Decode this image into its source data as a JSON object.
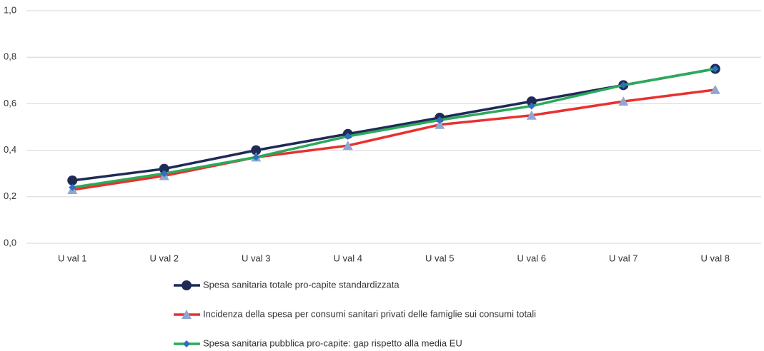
{
  "chart_data": {
    "type": "line",
    "categories": [
      "U val 1",
      "U val 2",
      "U val 3",
      "U val 4",
      "U val 5",
      "U val 6",
      "U val 7",
      "U val 8"
    ],
    "series": [
      {
        "name": "Spesa sanitaria totale pro-capite standardizzata",
        "color": "#1f2a56",
        "marker": "circle",
        "values": [
          0.27,
          0.32,
          0.4,
          0.47,
          0.54,
          0.61,
          0.68,
          0.75
        ]
      },
      {
        "name": "Incidenza della spesa per consumi sanitari privati delle famiglie sui consumi totali",
        "color": "#e8312f",
        "marker": "triangle",
        "values": [
          0.23,
          0.29,
          0.37,
          0.42,
          0.51,
          0.55,
          0.61,
          0.66
        ]
      },
      {
        "name": "Spesa sanitaria pubblica pro-capite: gap rispetto alla media EU",
        "color": "#2aaa5a",
        "marker": "diamond",
        "values": [
          0.24,
          0.3,
          0.37,
          0.46,
          0.53,
          0.59,
          0.68,
          0.75
        ]
      }
    ],
    "ylim": [
      0,
      1
    ],
    "yticks": [
      {
        "value": 0,
        "label": "0,0"
      },
      {
        "value": 0.2,
        "label": "0,2"
      },
      {
        "value": 0.4,
        "label": "0,4"
      },
      {
        "value": 0.6,
        "label": "0,6"
      },
      {
        "value": 0.8,
        "label": "0,8"
      },
      {
        "value": 1,
        "label": "1,0"
      }
    ],
    "grid": true,
    "legend": "bottom"
  }
}
